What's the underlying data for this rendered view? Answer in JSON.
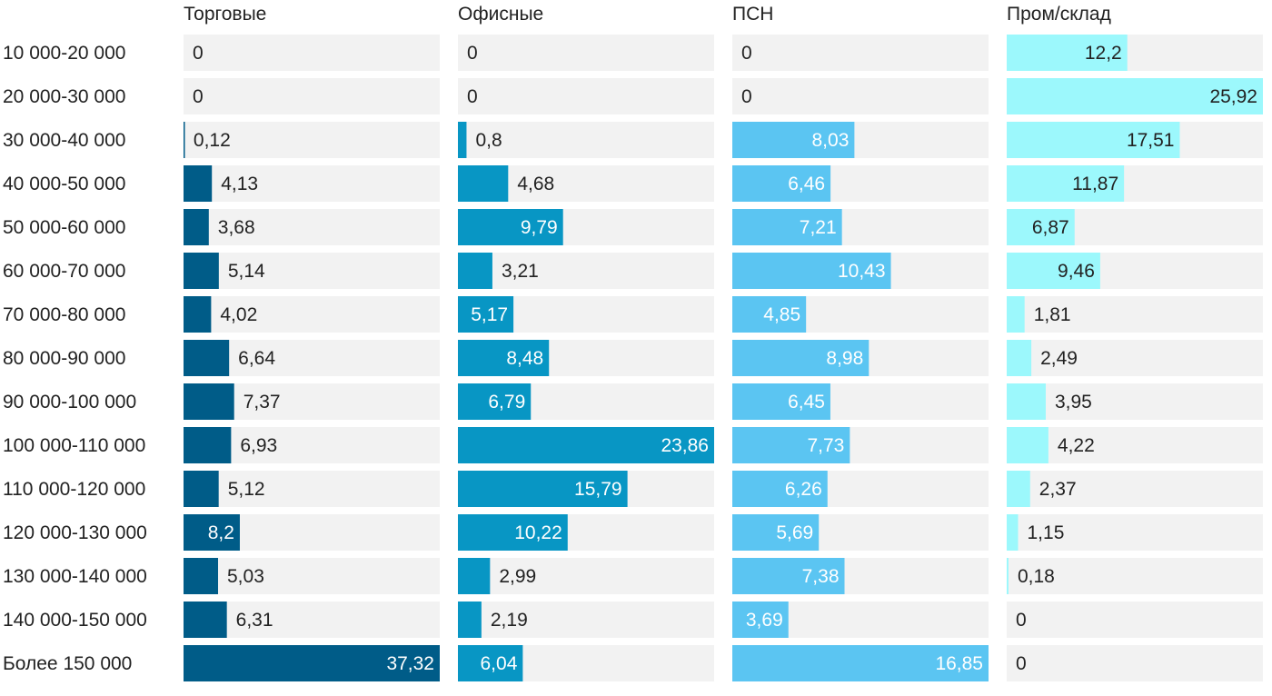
{
  "chart_data": {
    "type": "bar",
    "orientation": "horizontal",
    "layout": "small-multiples",
    "categories": [
      "10 000-20 000",
      "20 000-30 000",
      "30 000-40 000",
      "40 000-50 000",
      "50 000-60 000",
      "60 000-70 000",
      "70 000-80 000",
      "80 000-90 000",
      "90 000-100 000",
      "100 000-110 000",
      "110 000-120 000",
      "120 000-130 000",
      "130 000-140 000",
      "140 000-150 000",
      "Более 150 000"
    ],
    "series": [
      {
        "name": "Торговые",
        "color": "#005c88",
        "xlim": [
          0,
          37.32
        ],
        "values": [
          0,
          0,
          0.12,
          4.13,
          3.68,
          5.14,
          4.02,
          6.64,
          7.37,
          6.93,
          5.12,
          8.2,
          5.03,
          6.31,
          37.32
        ],
        "labels": [
          "0",
          "0",
          "0,12",
          "4,13",
          "3,68",
          "5,14",
          "4,02",
          "6,64",
          "7,37",
          "6,93",
          "5,12",
          "8,2",
          "5,03",
          "6,31",
          "37,32"
        ]
      },
      {
        "name": "Офисные",
        "color": "#0896c4",
        "xlim": [
          0,
          23.86
        ],
        "values": [
          0,
          0,
          0.8,
          4.68,
          9.79,
          3.21,
          5.17,
          8.48,
          6.79,
          23.86,
          15.79,
          10.22,
          2.99,
          2.19,
          6.04
        ],
        "labels": [
          "0",
          "0",
          "0,8",
          "4,68",
          "9,79",
          "3,21",
          "5,17",
          "8,48",
          "6,79",
          "23,86",
          "15,79",
          "10,22",
          "2,99",
          "2,19",
          "6,04"
        ]
      },
      {
        "name": "ПСН",
        "color": "#5bc5f2",
        "xlim": [
          0,
          16.85
        ],
        "values": [
          0,
          0,
          8.03,
          6.46,
          7.21,
          10.43,
          4.85,
          8.98,
          6.45,
          7.73,
          6.26,
          5.69,
          7.38,
          3.69,
          16.85
        ],
        "labels": [
          "0",
          "0",
          "8,03",
          "6,46",
          "7,21",
          "10,43",
          "4,85",
          "8,98",
          "6,45",
          "7,73",
          "6,26",
          "5,69",
          "7,38",
          "3,69",
          "16,85"
        ]
      },
      {
        "name": "Пром/склад",
        "color": "#9cf8fc",
        "xlim": [
          0,
          25.92
        ],
        "values": [
          12.2,
          25.92,
          17.51,
          11.87,
          6.87,
          9.46,
          1.81,
          2.49,
          3.95,
          4.22,
          2.37,
          1.15,
          0.18,
          0,
          0
        ],
        "labels": [
          "12,2",
          "25,92",
          "17,51",
          "11,87",
          "6,87",
          "9,46",
          "1,81",
          "2,49",
          "3,95",
          "4,22",
          "2,37",
          "1,15",
          "0,18",
          "0",
          "0"
        ]
      }
    ],
    "colors": {
      "track": "#f2f2f2",
      "text_dark": "#222222",
      "text_light": "#ffffff"
    },
    "grid": false,
    "legend": "none"
  }
}
